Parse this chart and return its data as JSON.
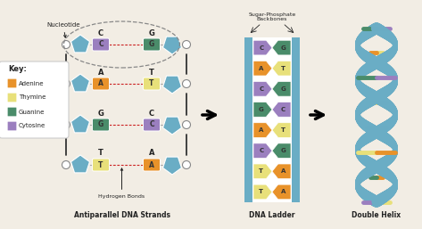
{
  "title_left": "Antiparallel DNA Strands",
  "title_mid": "DNA Ladder",
  "title_right": "Double Helix",
  "sugar_phosphate_label": "Sugar-Phosphate\nBackbones",
  "hydrogen_bonds_label": "Hydrogen Bonds",
  "nucleotide_label": "Nucleotide",
  "key_label": "Key:",
  "key_items": [
    {
      "name": "Adenine",
      "color": "#E8922A"
    },
    {
      "name": "Thymine",
      "color": "#E8E07A"
    },
    {
      "name": "Guanine",
      "color": "#4A8C6A"
    },
    {
      "name": "Cytosine",
      "color": "#9B7FBF"
    }
  ],
  "strand_color": "#6AADC5",
  "bg_color": "#f2ede4",
  "text_color": "#222222",
  "strand_pairs_diagram": [
    {
      "left": "C",
      "right": "G",
      "lcolor": "#9B7FBF",
      "rcolor": "#4A8C6A"
    },
    {
      "left": "A",
      "right": "T",
      "lcolor": "#E8922A",
      "rcolor": "#E8E07A"
    },
    {
      "left": "G",
      "right": "C",
      "lcolor": "#4A8C6A",
      "rcolor": "#9B7FBF"
    },
    {
      "left": "T",
      "right": "A",
      "lcolor": "#E8E07A",
      "rcolor": "#E8922A"
    }
  ],
  "base_pairs": [
    {
      "left": "C",
      "right": "G",
      "lcolor": "#9B7FBF",
      "rcolor": "#4A8C6A"
    },
    {
      "left": "A",
      "right": "T",
      "lcolor": "#E8922A",
      "rcolor": "#E8E07A"
    },
    {
      "left": "C",
      "right": "G",
      "lcolor": "#9B7FBF",
      "rcolor": "#4A8C6A"
    },
    {
      "left": "G",
      "right": "C",
      "lcolor": "#4A8C6A",
      "rcolor": "#9B7FBF"
    },
    {
      "left": "A",
      "right": "T",
      "lcolor": "#E8922A",
      "rcolor": "#E8E07A"
    },
    {
      "left": "C",
      "right": "G",
      "lcolor": "#9B7FBF",
      "rcolor": "#4A8C6A"
    },
    {
      "left": "T",
      "right": "A",
      "lcolor": "#E8E07A",
      "rcolor": "#E8922A"
    },
    {
      "left": "T",
      "right": "A",
      "lcolor": "#E8E07A",
      "rcolor": "#E8922A"
    }
  ],
  "helix_rungs": [
    {
      "lcolor": "#E8E07A",
      "rcolor": "#9B7FBF"
    },
    {
      "lcolor": "#E8922A",
      "rcolor": "#4A8C6A"
    },
    {
      "lcolor": "#E8E07A",
      "rcolor": "#E8922A"
    },
    {
      "lcolor": "#9B7FBF",
      "rcolor": "#4A8C6A"
    },
    {
      "lcolor": "#E8922A",
      "rcolor": "#E8E07A"
    },
    {
      "lcolor": "#4A8C6A",
      "rcolor": "#9B7FBF"
    },
    {
      "lcolor": "#E8E07A",
      "rcolor": "#E8922A"
    },
    {
      "lcolor": "#9B7FBF",
      "rcolor": "#4A8C6A"
    }
  ]
}
